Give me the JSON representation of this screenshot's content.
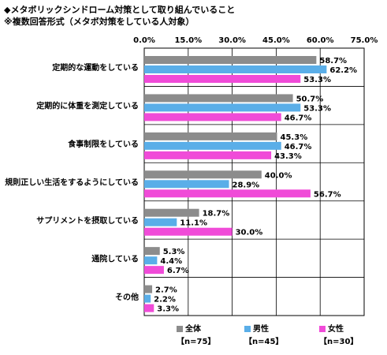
{
  "header": {
    "title": "◆メタボリックシンドローム対策として取り組んでいること",
    "subtitle": "※複数回答形式（メタボ対策をしている人対象）"
  },
  "colors": {
    "all": "#8c8c8c",
    "male": "#5aaee8",
    "female": "#f04bd8"
  },
  "legend": [
    {
      "label": "全体",
      "n": "【n=75】"
    },
    {
      "label": "男性",
      "n": "【n=45】"
    },
    {
      "label": "女性",
      "n": "【n=30】"
    }
  ],
  "chart_data": {
    "type": "bar",
    "orientation": "horizontal",
    "categories": [
      "定期的な運動をしている",
      "定期的に体重を測定している",
      "食事制限をしている",
      "規則正しい生活をするようにしている",
      "サプリメントを摂取している",
      "通院している",
      "その他"
    ],
    "series": [
      {
        "name": "全体",
        "values": [
          58.7,
          50.7,
          45.3,
          40.0,
          18.7,
          5.3,
          2.7
        ]
      },
      {
        "name": "男性",
        "values": [
          62.2,
          53.3,
          46.7,
          28.9,
          11.1,
          4.4,
          2.2
        ]
      },
      {
        "name": "女性",
        "values": [
          53.3,
          46.7,
          43.3,
          56.7,
          30.0,
          6.7,
          3.3
        ]
      }
    ],
    "xlim": [
      0,
      75
    ],
    "ticks": [
      0,
      15,
      30,
      45,
      60,
      75
    ],
    "tick_labels": [
      "0.0%",
      "15.0%",
      "30.0%",
      "45.0%",
      "60.0%",
      "75.0%"
    ],
    "grid": true,
    "legend_position": "bottom"
  }
}
